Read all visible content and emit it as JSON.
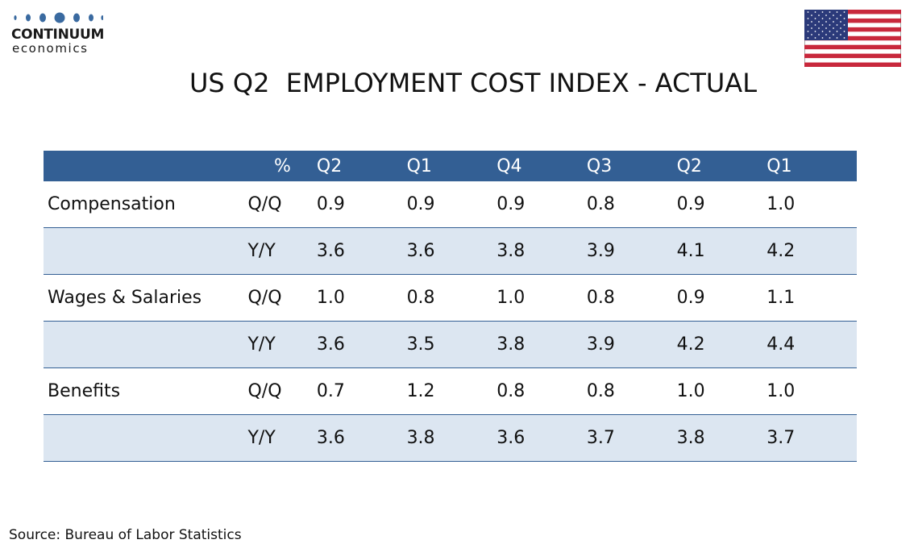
{
  "logo": {
    "name": "CONTINUUM",
    "sub": "economics"
  },
  "flag_icon": "us-flag-icon",
  "colors": {
    "header": "#335f94",
    "shade": "#dce6f1",
    "rule": "#335f94"
  },
  "chart_data": {
    "type": "table",
    "title": "US Q2  EMPLOYMENT COST INDEX - ACTUAL",
    "unit_header": "%",
    "columns": [
      "Q2",
      "Q1",
      "Q4",
      "Q3",
      "Q2",
      "Q1"
    ],
    "rows": [
      {
        "label": "Compensation",
        "measure": "Q/Q",
        "values": [
          "0.9",
          "0.9",
          "0.9",
          "0.8",
          "0.9",
          "1.0"
        ]
      },
      {
        "label": "",
        "measure": "Y/Y",
        "values": [
          "3.6",
          "3.6",
          "3.8",
          "3.9",
          "4.1",
          "4.2"
        ]
      },
      {
        "label": "Wages & Salaries",
        "measure": "Q/Q",
        "values": [
          "1.0",
          "0.8",
          "1.0",
          "0.8",
          "0.9",
          "1.1"
        ]
      },
      {
        "label": "",
        "measure": "Y/Y",
        "values": [
          "3.6",
          "3.5",
          "3.8",
          "3.9",
          "4.2",
          "4.4"
        ]
      },
      {
        "label": "Benefits",
        "measure": "Q/Q",
        "values": [
          "0.7",
          "1.2",
          "0.8",
          "0.8",
          "1.0",
          "1.0"
        ]
      },
      {
        "label": "",
        "measure": "Y/Y",
        "values": [
          "3.6",
          "3.8",
          "3.6",
          "3.7",
          "3.8",
          "3.7"
        ]
      }
    ]
  },
  "source": "Source: Bureau of Labor Statistics"
}
